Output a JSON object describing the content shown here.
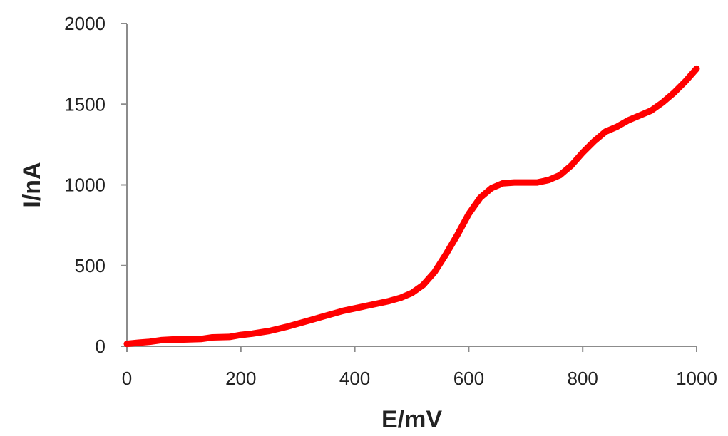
{
  "chart_data": {
    "type": "line",
    "title": "",
    "xlabel": "E/mV",
    "ylabel": "I/nA",
    "xlim": [
      0,
      1000
    ],
    "ylim": [
      0,
      2000
    ],
    "xticks": [
      0,
      200,
      400,
      600,
      800,
      1000
    ],
    "yticks": [
      0,
      500,
      1000,
      1500,
      2000
    ],
    "grid": false,
    "series": [
      {
        "color": "#ff0000",
        "x": [
          0,
          20,
          40,
          60,
          80,
          100,
          130,
          150,
          180,
          200,
          220,
          250,
          280,
          300,
          320,
          340,
          360,
          380,
          400,
          420,
          440,
          460,
          480,
          500,
          520,
          540,
          560,
          580,
          600,
          620,
          640,
          660,
          680,
          700,
          720,
          740,
          760,
          780,
          800,
          820,
          840,
          860,
          880,
          900,
          920,
          940,
          960,
          980,
          1000
        ],
        "y": [
          15,
          22,
          28,
          38,
          42,
          42,
          45,
          55,
          58,
          70,
          78,
          95,
          120,
          140,
          160,
          180,
          200,
          220,
          235,
          250,
          265,
          280,
          300,
          330,
          380,
          460,
          570,
          690,
          820,
          920,
          980,
          1010,
          1015,
          1015,
          1015,
          1030,
          1060,
          1120,
          1200,
          1270,
          1330,
          1360,
          1400,
          1430,
          1460,
          1510,
          1570,
          1640,
          1720
        ]
      }
    ]
  }
}
